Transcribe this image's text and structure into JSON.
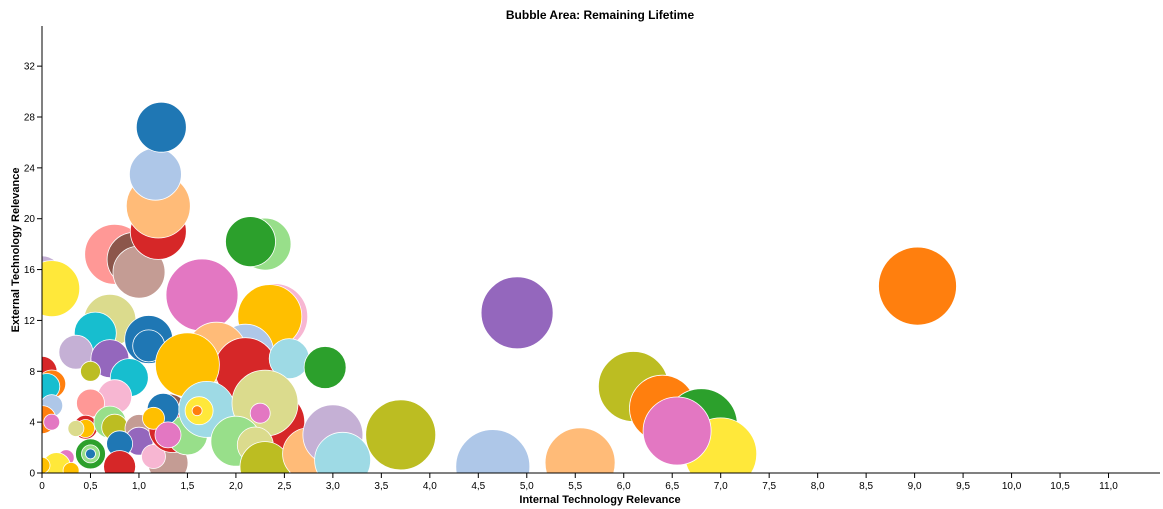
{
  "chart_data": {
    "type": "scatter",
    "title": "Bubble Area:  Remaining Lifetime",
    "xlabel": "Internal Technology Relevance",
    "ylabel": "External Technology Relevance",
    "xlim": [
      0,
      11.5
    ],
    "ylim": [
      0,
      35
    ],
    "x_ticks": [
      {
        "value": 0,
        "label": "0"
      },
      {
        "value": 0.5,
        "label": "0,5"
      },
      {
        "value": 1,
        "label": "1,0"
      },
      {
        "value": 1.5,
        "label": "1,5"
      },
      {
        "value": 2,
        "label": "2,0"
      },
      {
        "value": 2.5,
        "label": "2,5"
      },
      {
        "value": 3,
        "label": "3,0"
      },
      {
        "value": 3.5,
        "label": "3,5"
      },
      {
        "value": 4,
        "label": "4,0"
      },
      {
        "value": 4.5,
        "label": "4,5"
      },
      {
        "value": 5,
        "label": "5,0"
      },
      {
        "value": 5.5,
        "label": "5,5"
      },
      {
        "value": 6,
        "label": "6,0"
      },
      {
        "value": 6.5,
        "label": "6,5"
      },
      {
        "value": 7,
        "label": "7,0"
      },
      {
        "value": 7.5,
        "label": "7,5"
      },
      {
        "value": 8,
        "label": "8,0"
      },
      {
        "value": 8.5,
        "label": "8,5"
      },
      {
        "value": 9,
        "label": "9,0"
      },
      {
        "value": 9.5,
        "label": "9,5"
      },
      {
        "value": 10,
        "label": "10,0"
      },
      {
        "value": 10.5,
        "label": "10,5"
      },
      {
        "value": 11,
        "label": "11,0"
      }
    ],
    "y_ticks": [
      {
        "value": 0,
        "label": "0"
      },
      {
        "value": 4,
        "label": "4"
      },
      {
        "value": 8,
        "label": "8"
      },
      {
        "value": 12,
        "label": "12"
      },
      {
        "value": 16,
        "label": "16"
      },
      {
        "value": 20,
        "label": "20"
      },
      {
        "value": 24,
        "label": "24"
      },
      {
        "value": 28,
        "label": "28"
      },
      {
        "value": 32,
        "label": "32"
      }
    ],
    "grid": false,
    "size_encoding": "Remaining Lifetime",
    "points": [
      {
        "x": 0.0,
        "y": 15.5,
        "r": 20,
        "color": "#c5b0d5"
      },
      {
        "x": 0.1,
        "y": 14.5,
        "r": 28,
        "color": "#ffe83a"
      },
      {
        "x": 0.75,
        "y": 17.2,
        "r": 30,
        "color": "#ff9896"
      },
      {
        "x": 0.95,
        "y": 16.8,
        "r": 27,
        "color": "#8c564b"
      },
      {
        "x": 1.0,
        "y": 15.8,
        "r": 26,
        "color": "#c49c94"
      },
      {
        "x": 1.2,
        "y": 19.0,
        "r": 28,
        "color": "#d62728"
      },
      {
        "x": 1.2,
        "y": 21.0,
        "r": 32,
        "color": "#ffbb78"
      },
      {
        "x": 1.17,
        "y": 23.5,
        "r": 26,
        "color": "#aec7e8"
      },
      {
        "x": 1.23,
        "y": 27.2,
        "r": 25,
        "color": "#1f77b4"
      },
      {
        "x": 2.3,
        "y": 18.0,
        "r": 26,
        "color": "#98df8a"
      },
      {
        "x": 2.15,
        "y": 18.2,
        "r": 25,
        "color": "#2ca02c"
      },
      {
        "x": 1.65,
        "y": 14.0,
        "r": 36,
        "color": "#e377c2"
      },
      {
        "x": 2.4,
        "y": 12.3,
        "r": 33,
        "color": "#f7b6d2"
      },
      {
        "x": 2.35,
        "y": 12.3,
        "r": 32,
        "color": "#ffbf00"
      },
      {
        "x": 2.1,
        "y": 9.5,
        "r": 28,
        "color": "#aec7e8"
      },
      {
        "x": 1.8,
        "y": 9.5,
        "r": 30,
        "color": "#ffbb78"
      },
      {
        "x": 2.1,
        "y": 8.2,
        "r": 31,
        "color": "#d62728"
      },
      {
        "x": 2.55,
        "y": 9.0,
        "r": 20,
        "color": "#9edae5"
      },
      {
        "x": 2.92,
        "y": 8.3,
        "r": 21,
        "color": "#2ca02c"
      },
      {
        "x": 0.7,
        "y": 12.0,
        "r": 26,
        "color": "#dbdb8d"
      },
      {
        "x": 0.55,
        "y": 11.0,
        "r": 21,
        "color": "#17becf"
      },
      {
        "x": 1.1,
        "y": 10.5,
        "r": 24,
        "color": "#1f77b4"
      },
      {
        "x": 1.1,
        "y": 10.0,
        "r": 16,
        "color": "#1f77b4"
      },
      {
        "x": 1.5,
        "y": 8.5,
        "r": 32,
        "color": "#ffbf00"
      },
      {
        "x": 0.35,
        "y": 9.5,
        "r": 17,
        "color": "#c5b0d5"
      },
      {
        "x": 0.7,
        "y": 9.0,
        "r": 19,
        "color": "#9467bd"
      },
      {
        "x": 0.0,
        "y": 8.0,
        "r": 15,
        "color": "#d62728"
      },
      {
        "x": 0.1,
        "y": 7.0,
        "r": 14,
        "color": "#ff7f0e"
      },
      {
        "x": 0.05,
        "y": 6.8,
        "r": 13,
        "color": "#17becf"
      },
      {
        "x": 0.5,
        "y": 8.0,
        "r": 10,
        "color": "#bcbd22"
      },
      {
        "x": 0.9,
        "y": 7.5,
        "r": 19,
        "color": "#17becf"
      },
      {
        "x": 0.75,
        "y": 6.0,
        "r": 17,
        "color": "#f7b6d2"
      },
      {
        "x": 0.5,
        "y": 5.5,
        "r": 14,
        "color": "#ff9896"
      },
      {
        "x": 0.1,
        "y": 5.3,
        "r": 11,
        "color": "#aec7e8"
      },
      {
        "x": 0.0,
        "y": 4.2,
        "r": 14,
        "color": "#ff7f0e"
      },
      {
        "x": 0.1,
        "y": 4.0,
        "r": 8,
        "color": "#e377c2"
      },
      {
        "x": 0.45,
        "y": 3.6,
        "r": 12,
        "color": "#d62728"
      },
      {
        "x": 0.45,
        "y": 3.5,
        "r": 9,
        "color": "#ffbf00"
      },
      {
        "x": 0.35,
        "y": 3.5,
        "r": 8,
        "color": "#dbdb8d"
      },
      {
        "x": 0.7,
        "y": 4.0,
        "r": 16,
        "color": "#98df8a"
      },
      {
        "x": 0.75,
        "y": 3.6,
        "r": 13,
        "color": "#bcbd22"
      },
      {
        "x": 1.0,
        "y": 3.5,
        "r": 14,
        "color": "#c49c94"
      },
      {
        "x": 1.0,
        "y": 2.5,
        "r": 14,
        "color": "#9467bd"
      },
      {
        "x": 0.8,
        "y": 2.3,
        "r": 13,
        "color": "#1f77b4"
      },
      {
        "x": 0.5,
        "y": 1.5,
        "r": 15,
        "color": "#2ca02c"
      },
      {
        "x": 0.5,
        "y": 1.5,
        "r": 9,
        "color": "#98df8a"
      },
      {
        "x": 0.5,
        "y": 1.5,
        "r": 5,
        "color": "#1f77b4"
      },
      {
        "x": 0.25,
        "y": 1.2,
        "r": 8,
        "color": "#e377c2"
      },
      {
        "x": 0.15,
        "y": 0.5,
        "r": 14,
        "color": "#ffe83a"
      },
      {
        "x": 0.3,
        "y": 0.2,
        "r": 8,
        "color": "#ffbf00"
      },
      {
        "x": 0.0,
        "y": 0.6,
        "r": 8,
        "color": "#ffbf00"
      },
      {
        "x": 0.8,
        "y": 0.5,
        "r": 16,
        "color": "#d62728"
      },
      {
        "x": 1.3,
        "y": 0.8,
        "r": 20,
        "color": "#c49c94"
      },
      {
        "x": 1.15,
        "y": 1.3,
        "r": 12,
        "color": "#f7b6d2"
      },
      {
        "x": 1.3,
        "y": 4.5,
        "r": 22,
        "color": "#8c564b"
      },
      {
        "x": 1.35,
        "y": 3.5,
        "r": 24,
        "color": "#d62728"
      },
      {
        "x": 1.5,
        "y": 3.0,
        "r": 20,
        "color": "#98df8a"
      },
      {
        "x": 1.25,
        "y": 5.0,
        "r": 16,
        "color": "#1f77b4"
      },
      {
        "x": 1.15,
        "y": 4.3,
        "r": 11,
        "color": "#ffbf00"
      },
      {
        "x": 1.3,
        "y": 3.0,
        "r": 13,
        "color": "#e377c2"
      },
      {
        "x": 1.7,
        "y": 5.0,
        "r": 28,
        "color": "#9edae5"
      },
      {
        "x": 1.62,
        "y": 4.9,
        "r": 14,
        "color": "#ffe83a"
      },
      {
        "x": 1.6,
        "y": 4.9,
        "r": 5,
        "color": "#ff7f0e"
      },
      {
        "x": 2.4,
        "y": 4.0,
        "r": 30,
        "color": "#d62728"
      },
      {
        "x": 2.3,
        "y": 5.5,
        "r": 33,
        "color": "#dbdb8d"
      },
      {
        "x": 2.25,
        "y": 4.7,
        "r": 10,
        "color": "#e377c2"
      },
      {
        "x": 2.0,
        "y": 2.5,
        "r": 25,
        "color": "#98df8a"
      },
      {
        "x": 2.2,
        "y": 2.2,
        "r": 18,
        "color": "#dbdb8d"
      },
      {
        "x": 2.3,
        "y": 0.5,
        "r": 25,
        "color": "#bcbd22"
      },
      {
        "x": 2.8,
        "y": 1.5,
        "r": 26,
        "color": "#aec7e8"
      },
      {
        "x": 2.75,
        "y": 1.5,
        "r": 26,
        "color": "#ffbb78"
      },
      {
        "x": 3.0,
        "y": 3.0,
        "r": 30,
        "color": "#c5b0d5"
      },
      {
        "x": 3.1,
        "y": 1.0,
        "r": 28,
        "color": "#9edae5"
      },
      {
        "x": 3.7,
        "y": 3.0,
        "r": 35,
        "color": "#bcbd22"
      },
      {
        "x": 4.65,
        "y": 0.5,
        "r": 37,
        "color": "#aec7e8"
      },
      {
        "x": 4.9,
        "y": 12.6,
        "r": 36,
        "color": "#9467bd"
      },
      {
        "x": 5.55,
        "y": 0.8,
        "r": 35,
        "color": "#ffbb78"
      },
      {
        "x": 6.1,
        "y": 6.8,
        "r": 35,
        "color": "#bcbd22"
      },
      {
        "x": 6.4,
        "y": 5.1,
        "r": 33,
        "color": "#ff7f0e"
      },
      {
        "x": 6.8,
        "y": 3.8,
        "r": 36,
        "color": "#2ca02c"
      },
      {
        "x": 7.0,
        "y": 1.5,
        "r": 36,
        "color": "#ffe83a"
      },
      {
        "x": 6.5,
        "y": 2.5,
        "r": 22,
        "color": "#c49c94"
      },
      {
        "x": 6.55,
        "y": 3.3,
        "r": 34,
        "color": "#e377c2"
      },
      {
        "x": 9.03,
        "y": 14.7,
        "r": 39,
        "color": "#ff7f0e"
      }
    ]
  }
}
